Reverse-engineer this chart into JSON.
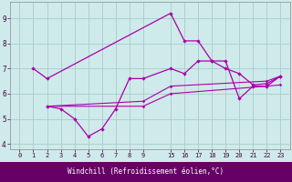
{
  "bg_color": "#ceeaea",
  "grid_color": "#aacccc",
  "line_color": "#aa00aa",
  "title_bg": "#660066",
  "title_text": "Windchill (Refroidissement éolien,°C)",
  "title_color": "#ffffff",
  "ylabel_ticks": [
    4,
    5,
    6,
    7,
    8,
    9
  ],
  "xlabel_ticks_left": [
    0,
    1,
    2,
    3,
    4,
    5,
    6,
    7,
    8,
    9
  ],
  "xlabel_ticks_right": [
    15,
    16,
    17,
    18,
    19,
    20,
    21,
    22,
    23
  ],
  "line1_x": [
    1,
    2,
    15,
    16,
    17,
    18,
    19,
    20,
    21,
    22,
    23
  ],
  "line1_y": [
    7.0,
    6.6,
    9.2,
    8.1,
    8.1,
    7.3,
    7.3,
    5.8,
    6.3,
    6.3,
    6.7
  ],
  "line2_x": [
    2,
    3,
    4,
    5,
    6,
    7,
    8,
    9,
    15,
    16,
    17,
    18,
    19,
    20,
    21,
    22,
    23
  ],
  "line2_y": [
    5.5,
    5.4,
    5.0,
    4.3,
    4.6,
    5.4,
    6.6,
    6.6,
    7.0,
    6.8,
    7.3,
    7.3,
    7.0,
    6.8,
    6.35,
    6.4,
    6.7
  ],
  "line3_x": [
    2,
    9,
    15,
    22,
    23
  ],
  "line3_y": [
    5.5,
    5.7,
    6.3,
    6.5,
    6.7
  ],
  "line4_x": [
    2,
    9,
    15,
    22,
    23
  ],
  "line4_y": [
    5.5,
    5.5,
    6.0,
    6.3,
    6.35
  ],
  "ylim": [
    3.8,
    9.65
  ],
  "figsize": [
    3.2,
    2.0
  ],
  "dpi": 100
}
